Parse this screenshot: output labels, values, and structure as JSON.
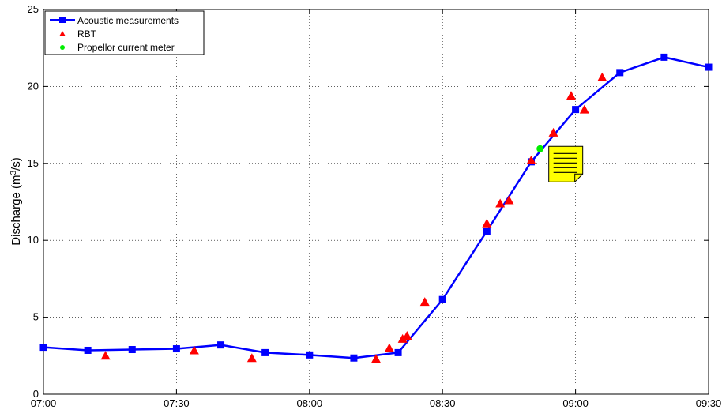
{
  "chart_data": {
    "type": "line",
    "ylabel": "Discharge (m",
    "ylabel_sup": "3",
    "ylabel_end": "/s)",
    "xlabel": "",
    "title": "",
    "xlim_minutes": [
      420,
      570
    ],
    "ylim": [
      0,
      25
    ],
    "x_ticks": [
      "07:00",
      "07:30",
      "08:00",
      "08:30",
      "09:00",
      "09:30"
    ],
    "y_ticks": [
      "0",
      "5",
      "10",
      "15",
      "20",
      "25"
    ],
    "grid": true,
    "legend_position": "top-left",
    "series": [
      {
        "name": "Acoustic measurements",
        "kind": "line-with-square-markers",
        "color": "#0000ff",
        "points": [
          {
            "x": "07:00",
            "y": 3.05
          },
          {
            "x": "07:10",
            "y": 2.85
          },
          {
            "x": "07:20",
            "y": 2.9
          },
          {
            "x": "07:30",
            "y": 2.95
          },
          {
            "x": "07:40",
            "y": 3.2
          },
          {
            "x": "07:50",
            "y": 2.7
          },
          {
            "x": "08:00",
            "y": 2.55
          },
          {
            "x": "08:10",
            "y": 2.35
          },
          {
            "x": "08:20",
            "y": 2.7
          },
          {
            "x": "08:30",
            "y": 6.15
          },
          {
            "x": "08:40",
            "y": 10.6
          },
          {
            "x": "08:50",
            "y": 15.1
          },
          {
            "x": "09:00",
            "y": 18.5
          },
          {
            "x": "09:10",
            "y": 20.9
          },
          {
            "x": "09:20",
            "y": 21.9
          },
          {
            "x": "09:30",
            "y": 21.25
          }
        ]
      },
      {
        "name": "RBT",
        "kind": "triangle-markers",
        "color": "#ff0000",
        "points": [
          {
            "x": "07:14",
            "y": 2.5
          },
          {
            "x": "07:34",
            "y": 2.85
          },
          {
            "x": "07:47",
            "y": 2.35
          },
          {
            "x": "08:15",
            "y": 2.3
          },
          {
            "x": "08:18",
            "y": 3.0
          },
          {
            "x": "08:21",
            "y": 3.6
          },
          {
            "x": "08:22",
            "y": 3.8
          },
          {
            "x": "08:26",
            "y": 6.0
          },
          {
            "x": "08:40",
            "y": 11.1
          },
          {
            "x": "08:43",
            "y": 12.4
          },
          {
            "x": "08:45",
            "y": 12.6
          },
          {
            "x": "08:50",
            "y": 15.2
          },
          {
            "x": "08:55",
            "y": 17.0
          },
          {
            "x": "08:59",
            "y": 19.4
          },
          {
            "x": "09:02",
            "y": 18.5
          },
          {
            "x": "09:06",
            "y": 20.6
          }
        ]
      },
      {
        "name": "Propellor current meter",
        "kind": "circle-markers",
        "color": "#00ee00",
        "points": [
          {
            "x": "08:52",
            "y": 15.95
          }
        ]
      }
    ],
    "annotation": {
      "type": "note-icon",
      "anchor": {
        "x": "08:52",
        "y": 15.95
      },
      "color": "#ffff00"
    }
  }
}
